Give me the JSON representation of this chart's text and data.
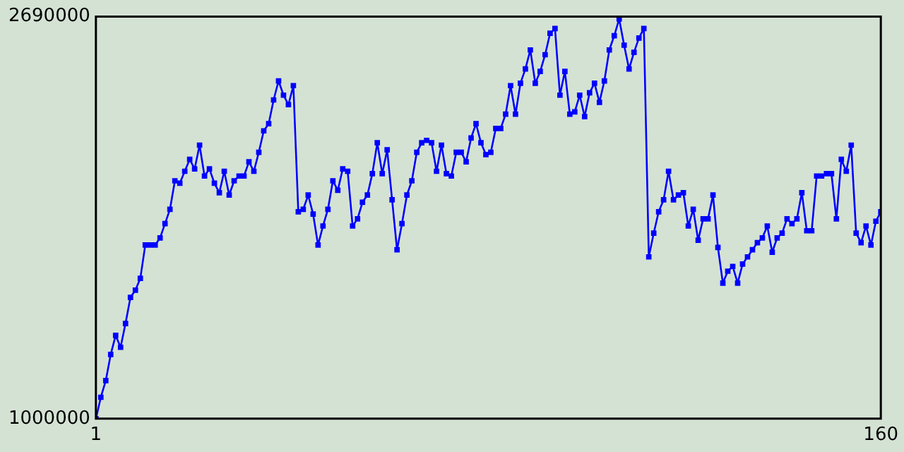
{
  "chart_data": {
    "type": "line",
    "x": [
      1,
      2,
      3,
      4,
      5,
      6,
      7,
      8,
      9,
      10,
      11,
      12,
      13,
      14,
      15,
      16,
      17,
      18,
      19,
      20,
      21,
      22,
      23,
      24,
      25,
      26,
      27,
      28,
      29,
      30,
      31,
      32,
      33,
      34,
      35,
      36,
      37,
      38,
      39,
      40,
      41,
      42,
      43,
      44,
      45,
      46,
      47,
      48,
      49,
      50,
      51,
      52,
      53,
      54,
      55,
      56,
      57,
      58,
      59,
      60,
      61,
      62,
      63,
      64,
      65,
      66,
      67,
      68,
      69,
      70,
      71,
      72,
      73,
      74,
      75,
      76,
      77,
      78,
      79,
      80,
      81,
      82,
      83,
      84,
      85,
      86,
      87,
      88,
      89,
      90,
      91,
      92,
      93,
      94,
      95,
      96,
      97,
      98,
      99,
      100,
      101,
      102,
      103,
      104,
      105,
      106,
      107,
      108,
      109,
      110,
      111,
      112,
      113,
      114,
      115,
      116,
      117,
      118,
      119,
      120,
      121,
      122,
      123,
      124,
      125,
      126,
      127,
      128,
      129,
      130,
      131,
      132,
      133,
      134,
      135,
      136,
      137,
      138,
      139,
      140,
      141,
      142,
      143,
      144,
      145,
      146,
      147,
      148,
      149,
      150,
      151,
      152,
      153,
      154,
      155,
      156,
      157,
      158,
      159,
      160
    ],
    "series": [
      {
        "color": "#0000ff",
        "values": [
          1000000,
          1090000,
          1160000,
          1270000,
          1350000,
          1300000,
          1400000,
          1510000,
          1540000,
          1590000,
          1730000,
          1730000,
          1730000,
          1760000,
          1820000,
          1880000,
          2000000,
          1990000,
          2040000,
          2090000,
          2050000,
          2150000,
          2020000,
          2050000,
          1990000,
          1950000,
          2040000,
          1940000,
          2000000,
          2020000,
          2020000,
          2080000,
          2040000,
          2120000,
          2210000,
          2240000,
          2340000,
          2420000,
          2360000,
          2320000,
          2400000,
          1870000,
          1880000,
          1940000,
          1860000,
          1730000,
          1810000,
          1880000,
          2000000,
          1960000,
          2050000,
          2040000,
          1810000,
          1840000,
          1910000,
          1940000,
          2030000,
          2160000,
          2030000,
          2130000,
          1920000,
          1710000,
          1820000,
          1940000,
          2000000,
          2120000,
          2160000,
          2170000,
          2160000,
          2040000,
          2150000,
          2030000,
          2020000,
          2120000,
          2120000,
          2080000,
          2180000,
          2240000,
          2160000,
          2110000,
          2120000,
          2220000,
          2220000,
          2280000,
          2400000,
          2280000,
          2410000,
          2470000,
          2550000,
          2410000,
          2460000,
          2530000,
          2620000,
          2640000,
          2360000,
          2460000,
          2280000,
          2290000,
          2360000,
          2270000,
          2370000,
          2410000,
          2330000,
          2420000,
          2550000,
          2610000,
          2680000,
          2570000,
          2470000,
          2540000,
          2600000,
          2640000,
          1680000,
          1780000,
          1870000,
          1920000,
          2040000,
          1920000,
          1940000,
          1950000,
          1810000,
          1880000,
          1750000,
          1840000,
          1840000,
          1940000,
          1720000,
          1570000,
          1620000,
          1640000,
          1570000,
          1650000,
          1680000,
          1710000,
          1740000,
          1760000,
          1810000,
          1700000,
          1760000,
          1780000,
          1840000,
          1820000,
          1840000,
          1950000,
          1790000,
          1790000,
          2020000,
          2020000,
          2030000,
          2030000,
          1840000,
          2090000,
          2040000,
          2150000,
          1780000,
          1740000,
          1810000,
          1730000,
          1830000,
          1870000
        ]
      }
    ],
    "xlim": [
      1,
      160
    ],
    "xticks": [
      1,
      160
    ],
    "ylim": [
      1000000,
      2690000
    ],
    "yticks": [
      1000000,
      2690000
    ],
    "legend": false,
    "marker": "square",
    "line_style": "solid"
  }
}
